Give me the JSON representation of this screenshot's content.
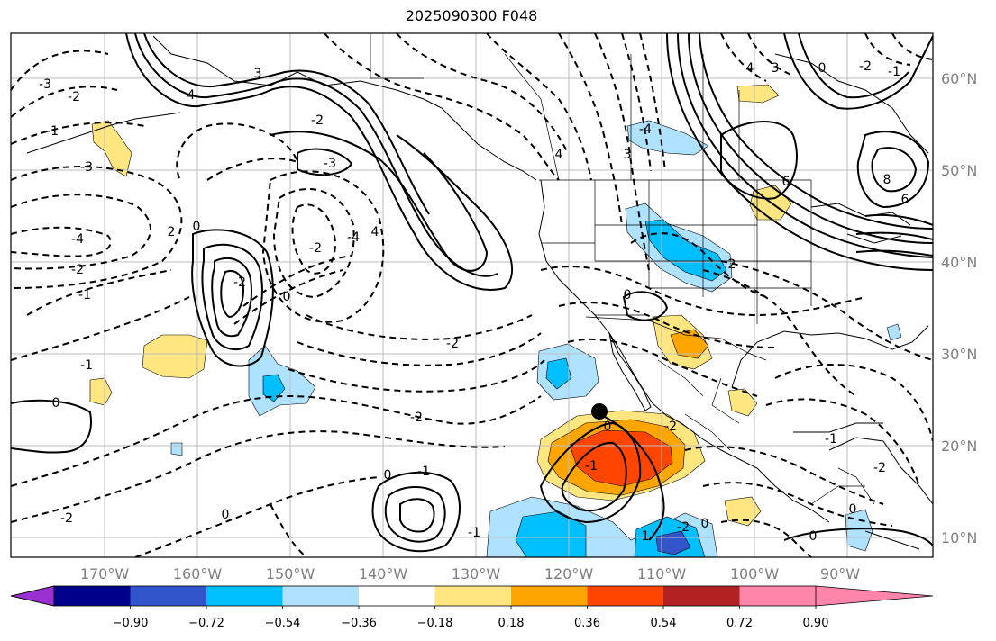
{
  "title": "2025090300 F048",
  "longitude_labels": [
    "170°W",
    "160°W",
    "150°W",
    "140°W",
    "130°W",
    "120°W",
    "110°W",
    "100°W",
    "90°W"
  ],
  "latitude_labels": [
    "60°N",
    "50°N",
    "40°N",
    "30°N",
    "20°N",
    "10°N"
  ],
  "colorbar": {
    "colors": [
      "#9b30d0",
      "#00008b",
      "#3355cc",
      "#00bfff",
      "#aee2ff",
      "#ffffff",
      "#ffe680",
      "#ffa500",
      "#ff4500",
      "#b22222",
      "#ff85aa"
    ],
    "tick_labels": [
      "−0.90",
      "−0.72",
      "−0.54",
      "−0.36",
      "−0.18",
      "0.18",
      "0.36",
      "0.54",
      "0.72",
      "0.90"
    ]
  },
  "contour_labels": [
    "-3",
    "-2",
    "-1",
    "-3",
    "-4",
    "-2",
    "-1",
    "0",
    "-2",
    "-1",
    "2",
    "0",
    "-2",
    "3",
    "4",
    "-2",
    "-3",
    "4",
    "-4",
    "0",
    "-2",
    "0",
    "0",
    "-1",
    "-2",
    "4",
    "3",
    "0",
    "-2",
    "8",
    "6",
    "6",
    "0",
    "-2",
    "-1",
    "-2",
    "0",
    "-1",
    "0",
    "1",
    "-1",
    "-2",
    "0",
    "-1",
    "0",
    "2",
    "3",
    "-4",
    "4",
    "-2"
  ],
  "storm_marker": "storm-center"
}
